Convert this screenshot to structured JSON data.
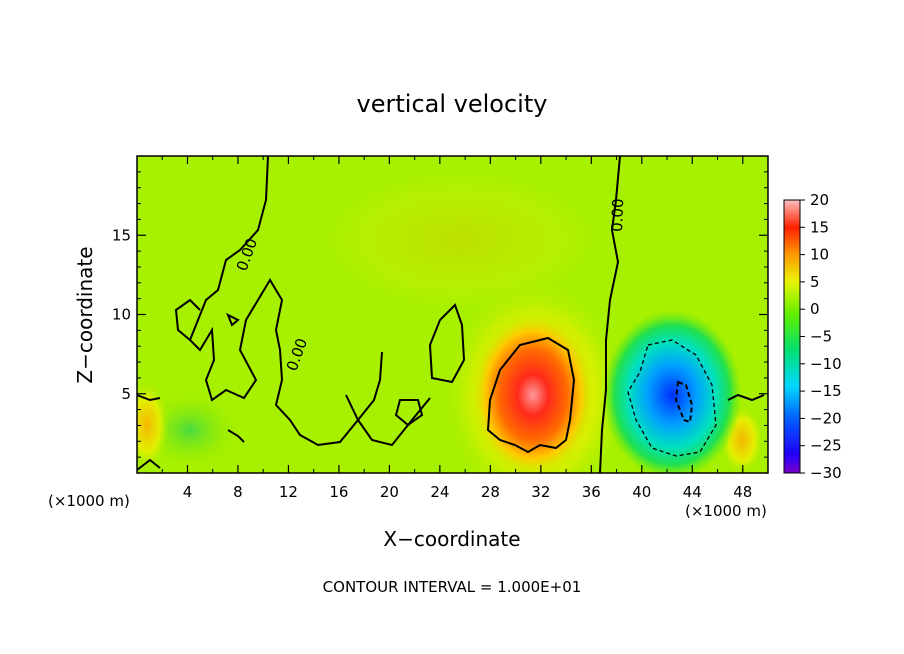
{
  "chart_data": {
    "type": "heatmap",
    "title": "vertical velocity",
    "xlabel": "X−coordinate",
    "ylabel": "Z−coordinate",
    "x_unit_left": "(×1000 m)",
    "x_unit_right": "(×1000 m)",
    "xlim": [
      0,
      50
    ],
    "ylim": [
      0,
      20
    ],
    "x_ticks": [
      4,
      8,
      12,
      16,
      20,
      24,
      28,
      32,
      36,
      40,
      44,
      48
    ],
    "y_ticks": [
      5,
      10,
      15
    ],
    "colorbar": {
      "ticks": [
        20,
        15,
        10,
        5,
        0,
        -5,
        -10,
        -15,
        -20,
        -25,
        -30
      ],
      "tick_labels": [
        "20",
        "15",
        "10",
        "5",
        "0",
        "−5",
        "−10",
        "−15",
        "−20",
        "−25",
        "−30"
      ],
      "range": [
        -30,
        20
      ],
      "colors": [
        "#7a00c8",
        "#0000ff",
        "#00d0ff",
        "#00e060",
        "#80f000",
        "#e8ff00",
        "#ff9a00",
        "#ff2000",
        "#ffb0b0"
      ]
    },
    "contour_labels": [
      "0.00",
      "0.00",
      "0.00"
    ],
    "contour_interval_text": "CONTOUR INTERVAL = 1.000E+01",
    "features": [
      {
        "kind": "updraft",
        "x_center": 31,
        "z_center": 5.5,
        "peak": 18
      },
      {
        "kind": "downdraft",
        "x_center": 43,
        "z_center": 5,
        "peak": -17
      }
    ]
  }
}
